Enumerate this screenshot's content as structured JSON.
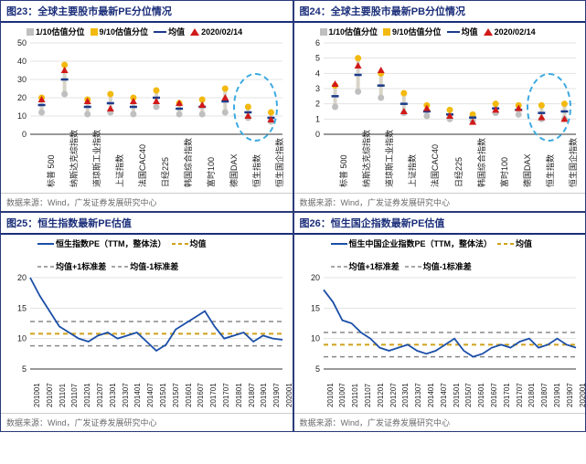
{
  "source_text": "数据来源：Wind，广发证券发展研究中心",
  "colors": {
    "grey": "#bfbfbf",
    "yellow": "#f2b90f",
    "navy": "#1b3a8a",
    "red": "#d11919",
    "blue_line": "#1b4fa8",
    "gold_dash": "#cfa11a",
    "grid": "#e3e3e3",
    "ink": "#1b2e7a"
  },
  "chart23": {
    "title": "图23：全球主要股市最新PE分位情况",
    "legend": [
      "1/10估值分位",
      "9/10估值分位",
      "均值",
      "2020/02/14"
    ],
    "ylim": [
      0,
      50
    ],
    "ystep": 10,
    "categories": [
      "标普 500",
      "纳斯达克综指数",
      "道琼斯工业指数",
      "上证指数",
      "法国CAC40",
      "日经225",
      "韩国综合指数",
      "富时100",
      "德国DAX",
      "恒生指数",
      "恒生国企指数"
    ],
    "p10": [
      12,
      22,
      11,
      12,
      11,
      15,
      11,
      11,
      12,
      9,
      7
    ],
    "p90": [
      20,
      38,
      19,
      22,
      20,
      24,
      17,
      19,
      25,
      15,
      12
    ],
    "mean": [
      16,
      30,
      15,
      17,
      15,
      20,
      14,
      15,
      18,
      12,
      9
    ],
    "latest": [
      19,
      35,
      18,
      14,
      18,
      18,
      17,
      16,
      20,
      10,
      8
    ],
    "highlight": {
      "start_idx": 9,
      "end_idx": 10
    }
  },
  "chart24": {
    "title": "图24：全球主要股市最新PB分位情况",
    "legend": [
      "1/10估值分位",
      "9/10估值分位",
      "均值",
      "2020/02/14"
    ],
    "ylim": [
      0,
      6
    ],
    "ystep": 1,
    "categories": [
      "标普 500",
      "纳斯达克综指数",
      "道琼斯工业指数",
      "上证指数",
      "法国CAC40",
      "日经225",
      "韩国综合指数",
      "富时100",
      "德国DAX",
      "恒生指数",
      "恒生国企指数"
    ],
    "p10": [
      1.8,
      2.8,
      2.4,
      1.4,
      1.2,
      1.0,
      0.9,
      1.4,
      1.3,
      1.0,
      1.0
    ],
    "p90": [
      3.2,
      5.0,
      4.0,
      2.7,
      1.9,
      1.6,
      1.3,
      2.0,
      1.9,
      1.9,
      2.0
    ],
    "mean": [
      2.5,
      3.9,
      3.2,
      2.0,
      1.5,
      1.3,
      1.1,
      1.7,
      1.6,
      1.4,
      1.5
    ],
    "latest": [
      3.3,
      4.5,
      4.2,
      1.5,
      1.7,
      1.2,
      0.8,
      1.6,
      1.7,
      1.1,
      1.0
    ],
    "highlight": {
      "start_idx": 9,
      "end_idx": 10
    }
  },
  "chart25": {
    "title": "图25：恒生指数最新PE估值",
    "legend": [
      "恒生指数PE（TTM，整体法）",
      "均值",
      "均值+1标准差",
      "均值-1标准差"
    ],
    "ylim": [
      5,
      20
    ],
    "ystep": 5,
    "mean": 10.8,
    "sd": 2.0,
    "x_labels": [
      "201001",
      "201007",
      "201101",
      "201107",
      "201201",
      "201207",
      "201301",
      "201307",
      "201401",
      "201407",
      "201501",
      "201507",
      "201601",
      "201607",
      "201701",
      "201707",
      "201801",
      "201807",
      "201901",
      "201907",
      "202001"
    ],
    "series": [
      20,
      17,
      14.5,
      12,
      11,
      10,
      9.5,
      10.5,
      11,
      10,
      10.5,
      11,
      9.5,
      8,
      9,
      11.5,
      12.5,
      13.5,
      14.5,
      12,
      10,
      10.5,
      11,
      9.5,
      10.5,
      10,
      9.8
    ]
  },
  "chart26": {
    "title": "图26：恒生国企指数最新PE估值",
    "legend": [
      "恒生中国企业指数PE（TTM，整体法）",
      "均值",
      "均值+1标准差",
      "均值-1标准差"
    ],
    "ylim": [
      5,
      20
    ],
    "ystep": 5,
    "mean": 9.0,
    "sd": 2.0,
    "x_labels": [
      "201001",
      "201007",
      "201101",
      "201107",
      "201201",
      "201207",
      "201301",
      "201307",
      "201401",
      "201407",
      "201501",
      "201507",
      "201601",
      "201607",
      "201701",
      "201707",
      "201801",
      "201807",
      "201901",
      "201907",
      "202001"
    ],
    "series": [
      18,
      16,
      13,
      12.5,
      11,
      10,
      8.5,
      8,
      8.5,
      9,
      8,
      7.5,
      8,
      9,
      10,
      8,
      7,
      7.5,
      8.5,
      9,
      8.5,
      9.5,
      10,
      8.5,
      9,
      10,
      9,
      8.5
    ]
  }
}
